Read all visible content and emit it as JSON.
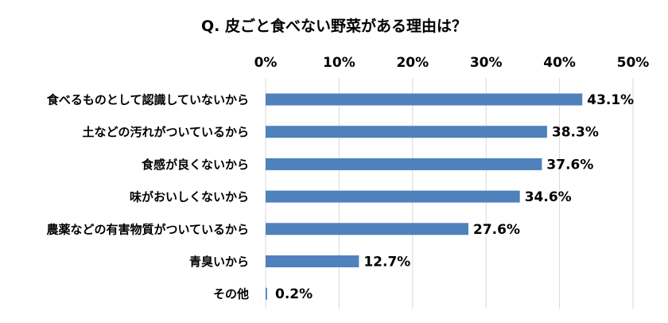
{
  "chart_data": {
    "type": "bar",
    "orientation": "horizontal",
    "title": "Q. 皮ごと食べない野菜がある理由は？",
    "categories": [
      "食べるものとして認識していないから",
      "土などの汚れがついているから",
      "食感が良くないから",
      "味がおいしくないから",
      "農薬などの有害物質がついているから",
      "青臭いから",
      "その他"
    ],
    "values": [
      43.1,
      38.3,
      37.6,
      34.6,
      27.6,
      12.7,
      0.2
    ],
    "value_labels": [
      "43.1%",
      "38.3%",
      "37.6%",
      "34.6%",
      "27.6%",
      "12.7%",
      "0.2%"
    ],
    "xlim": [
      0,
      50
    ],
    "ticks": [
      0,
      10,
      20,
      30,
      40,
      50
    ],
    "tick_labels": [
      "0%",
      "10%",
      "20%",
      "30%",
      "40%",
      "50%"
    ],
    "axis_position": "top",
    "grid": true,
    "bar_color": "#4f81bd",
    "grid_color": "#d9d9d9"
  }
}
